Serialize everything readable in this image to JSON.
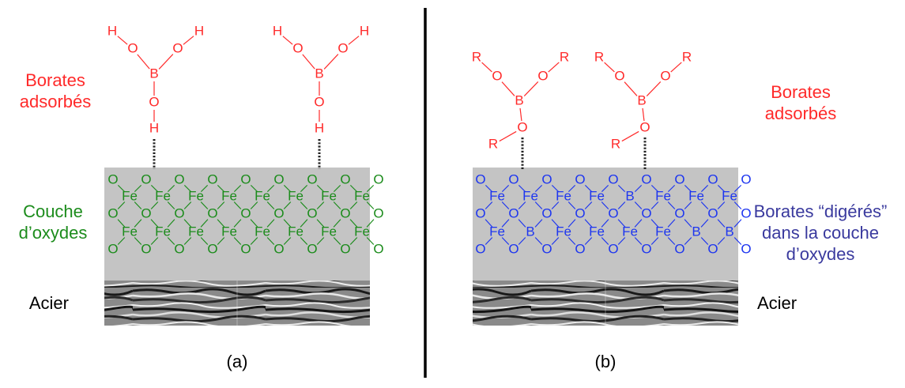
{
  "colors": {
    "red": "#ff2a2a",
    "green": "#1c8c1c",
    "blue": "#1e36f0",
    "labelBlue": "#3a3a9e",
    "oxide": "#c4c4c4",
    "black": "#000000"
  },
  "panel_a": {
    "caption": "(a)",
    "borates_label": [
      "Borates",
      "adsorbés"
    ],
    "oxide_label": [
      "Couche",
      "d’oxydes"
    ],
    "steel_label": "Acier",
    "oxide_row_top": [
      "O",
      "O",
      "O",
      "O",
      "O",
      "O",
      "O",
      "O",
      "O"
    ],
    "oxide_row_mid": [
      "O",
      "O",
      "O",
      "O",
      "O",
      "O",
      "O",
      "O",
      "O"
    ],
    "oxide_row_bottom": [
      "O",
      "O",
      "O",
      "O",
      "O",
      "O",
      "O",
      "O",
      "O"
    ],
    "metal_row_1": [
      "Fe",
      "Fe",
      "Fe",
      "Fe",
      "Fe",
      "Fe",
      "Fe",
      "Fe"
    ],
    "metal_row_2": [
      "Fe",
      "Fe",
      "Fe",
      "Fe",
      "Fe",
      "Fe",
      "Fe",
      "Fe"
    ],
    "molecule": {
      "b": "B",
      "o": "O",
      "h": "H"
    }
  },
  "panel_b": {
    "caption": "(b)",
    "borates_label": [
      "Borates",
      "adsorbés"
    ],
    "digested_label": [
      "Borates “digérés”",
      "dans la couche",
      "d’oxydes"
    ],
    "steel_label": "Acier",
    "oxide_row_top": [
      "O",
      "O",
      "O",
      "O",
      "O",
      "O",
      "O",
      "O",
      "O"
    ],
    "oxide_row_mid": [
      "O",
      "O",
      "O",
      "O",
      "O",
      "O",
      "O",
      "O",
      "O"
    ],
    "oxide_row_bottom": [
      "O",
      "O",
      "O",
      "O",
      "O",
      "O",
      "O",
      "O",
      "O"
    ],
    "metal_row_1": [
      "Fe",
      "Fe",
      "Fe",
      "Fe",
      "B",
      "Fe",
      "Fe",
      "Fe"
    ],
    "metal_row_2": [
      "Fe",
      "B",
      "Fe",
      "Fe",
      "Fe",
      "Fe",
      "B",
      "B"
    ],
    "molecule": {
      "b": "B",
      "o": "O",
      "r": "R"
    }
  }
}
